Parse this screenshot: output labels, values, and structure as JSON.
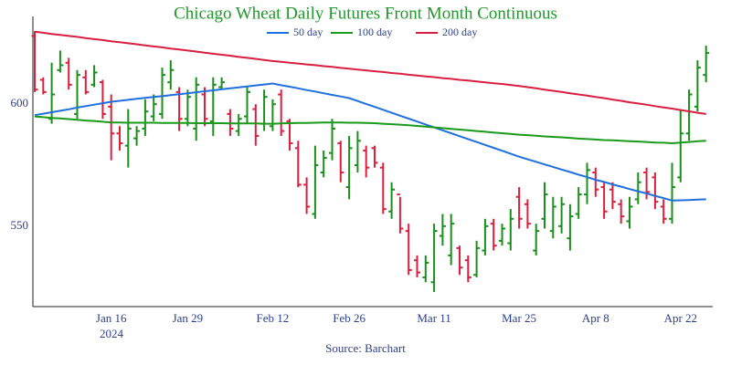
{
  "chart_data": {
    "type": "ohlc",
    "title": "Chicago Wheat Daily Futures Front Month Continuous",
    "source": "Source: Barchart",
    "x_year": "2024",
    "categories": [
      null,
      null,
      null,
      null,
      null,
      null,
      null,
      null,
      null,
      "Jan 16",
      null,
      null,
      null,
      null,
      null,
      null,
      null,
      null,
      "Jan 29",
      null,
      null,
      null,
      null,
      null,
      null,
      null,
      null,
      null,
      "Feb 12",
      null,
      null,
      null,
      null,
      null,
      null,
      null,
      null,
      "Feb 26",
      null,
      null,
      null,
      null,
      null,
      null,
      null,
      null,
      null,
      "Mar 11",
      null,
      null,
      null,
      null,
      null,
      null,
      null,
      null,
      null,
      "Mar 25",
      null,
      null,
      null,
      null,
      null,
      null,
      null,
      null,
      "Apr 8",
      null,
      null,
      null,
      null,
      null,
      null,
      null,
      null,
      null,
      "Apr 22",
      null,
      null,
      null
    ],
    "open": [
      628,
      610,
      594,
      614,
      617,
      596,
      611,
      608,
      609,
      599,
      588,
      583,
      586,
      590,
      595,
      596,
      609,
      605,
      594,
      590,
      604,
      593,
      607,
      596,
      589,
      595,
      598,
      592,
      591,
      604,
      593,
      582,
      567,
      555,
      572,
      580,
      584,
      566,
      575,
      581,
      582,
      574,
      556,
      563,
      548,
      536,
      529,
      527,
      546,
      538,
      541,
      536,
      530,
      540,
      551,
      544,
      543,
      562,
      559,
      540,
      553,
      548,
      550,
      545,
      555,
      563,
      572,
      566,
      565,
      559,
      552,
      561,
      572,
      570,
      558,
      553,
      570,
      588,
      599,
      612
    ],
    "high": [
      630,
      611,
      617,
      622,
      619,
      614,
      614,
      616,
      610,
      604,
      591,
      598,
      591,
      602,
      604,
      615,
      618,
      607,
      606,
      611,
      607,
      611,
      611,
      598,
      596,
      607,
      600,
      606,
      602,
      606,
      594,
      585,
      570,
      583,
      581,
      594,
      585,
      587,
      589,
      583,
      583,
      576,
      568,
      562,
      551,
      538,
      538,
      551,
      555,
      555,
      542,
      538,
      544,
      553,
      553,
      551,
      557,
      566,
      561,
      551,
      568,
      562,
      562,
      559,
      566,
      576,
      574,
      568,
      568,
      561,
      562,
      572,
      574,
      572,
      561,
      576,
      598,
      606,
      618,
      624
    ],
    "low": [
      605,
      604,
      592,
      613,
      606,
      594,
      604,
      607,
      594,
      577,
      581,
      574,
      583,
      587,
      593,
      594,
      606,
      589,
      591,
      585,
      591,
      587,
      606,
      587,
      587,
      592,
      583,
      589,
      589,
      587,
      581,
      566,
      555,
      553,
      570,
      577,
      568,
      561,
      572,
      570,
      574,
      555,
      553,
      547,
      530,
      529,
      527,
      523,
      542,
      534,
      530,
      527,
      529,
      538,
      540,
      542,
      540,
      549,
      549,
      538,
      549,
      545,
      547,
      540,
      553,
      559,
      562,
      553,
      557,
      551,
      549,
      559,
      561,
      557,
      551,
      551,
      568,
      585,
      597,
      609
    ],
    "close": [
      606,
      605,
      604,
      616,
      608,
      612,
      605,
      613,
      596,
      588,
      584,
      590,
      589,
      597,
      600,
      612,
      614,
      594,
      603,
      608,
      594,
      608,
      609,
      590,
      594,
      605,
      587,
      603,
      600,
      589,
      584,
      567,
      558,
      575,
      578,
      590,
      572,
      582,
      585,
      574,
      576,
      557,
      565,
      549,
      532,
      531,
      535,
      548,
      550,
      551,
      533,
      529,
      541,
      550,
      542,
      549,
      553,
      553,
      551,
      548,
      563,
      558,
      559,
      554,
      563,
      573,
      565,
      556,
      560,
      554,
      558,
      568,
      564,
      560,
      553,
      566,
      588,
      604,
      615,
      621
    ],
    "up_color": "#1a8f1a",
    "down_color": "#dc1f3c",
    "series": [
      {
        "name": "50 day",
        "color": "#1f6fdc",
        "values": [
          595.5,
          596.1,
          596.7,
          597.3,
          597.9,
          598.6,
          599.2,
          599.8,
          600.4,
          601,
          601.4,
          601.8,
          602.2,
          602.6,
          603.0,
          603.3,
          603.7,
          604.1,
          604.5,
          604.9,
          605.3,
          605.7,
          606.1,
          606.5,
          606.9,
          607.3,
          607.7,
          608.1,
          608.5,
          607.8,
          607.2,
          606.5,
          605.8,
          605.2,
          604.5,
          603.8,
          603.2,
          602.5,
          601.3,
          600.1,
          598.9,
          597.7,
          596.5,
          595.3,
          594.1,
          592.9,
          591.7,
          590.5,
          589.3,
          588.1,
          586.9,
          585.7,
          584.5,
          583.3,
          582.1,
          580.9,
          579.7,
          578.5,
          577.4,
          576.4,
          575.3,
          574.3,
          573.2,
          572.2,
          571.1,
          570.1,
          569,
          568.1,
          567.1,
          566.2,
          565.2,
          564.3,
          563.4,
          562.4,
          561.5,
          560.5,
          560.6,
          560.7,
          560.9,
          561
        ]
      },
      {
        "name": "100 day",
        "color": "#1a9a1a",
        "values": [
          595,
          594.7,
          594.4,
          594.2,
          593.9,
          593.6,
          593.3,
          593.1,
          592.8,
          592.5,
          592.5,
          592.4,
          592.4,
          592.4,
          592.4,
          592.3,
          592.3,
          592.3,
          592.3,
          592.2,
          592.2,
          592.2,
          592.2,
          592.1,
          592.1,
          592.1,
          592.1,
          592.0,
          592.0,
          592.1,
          592.2,
          592.3,
          592.3,
          592.4,
          592.5,
          592.5,
          592.5,
          592.4,
          592.4,
          592.3,
          592.2,
          592.0,
          591.8,
          591.6,
          591.4,
          591.1,
          590.8,
          590.5,
          590.2,
          589.9,
          589.6,
          589.3,
          589.0,
          588.7,
          588.4,
          588.1,
          587.8,
          587.5,
          587.3,
          587.1,
          586.8,
          586.6,
          586.4,
          586.2,
          585.9,
          585.7,
          585.5,
          585.3,
          585.2,
          585.0,
          584.8,
          584.7,
          584.5,
          584.3,
          584.2,
          584.0,
          584.3,
          584.5,
          584.8,
          585.0
        ]
      },
      {
        "name": "200 day",
        "color": "#d81f3f",
        "values": [
          629.7,
          629.3,
          628.8,
          628.4,
          628.0,
          627.6,
          627.1,
          626.7,
          626.3,
          625.8,
          625.4,
          625.0,
          624.6,
          624.1,
          623.7,
          623.3,
          622.8,
          622.4,
          622.0,
          621.6,
          621.1,
          620.7,
          620.3,
          619.9,
          619.4,
          619.0,
          618.6,
          618.1,
          617.7,
          617.4,
          617.0,
          616.7,
          616.3,
          616.0,
          615.6,
          615.3,
          614.9,
          614.6,
          614.2,
          613.9,
          613.5,
          613.2,
          612.8,
          612.5,
          612.1,
          611.8,
          611.4,
          611.1,
          610.7,
          610.4,
          610.0,
          609.7,
          609.3,
          609.0,
          608.6,
          608.3,
          607.9,
          607.5,
          607.0,
          606.5,
          606.0,
          605.5,
          605.0,
          604.5,
          604.0,
          603.5,
          603.0,
          602.5,
          601.9,
          601.4,
          600.8,
          600.3,
          599.8,
          599.2,
          598.7,
          598.2,
          597.6,
          597.1,
          596.5,
          596.0
        ]
      }
    ],
    "ylim": [
      517,
      636
    ],
    "yticks": [
      550,
      600
    ],
    "legend": "top"
  }
}
